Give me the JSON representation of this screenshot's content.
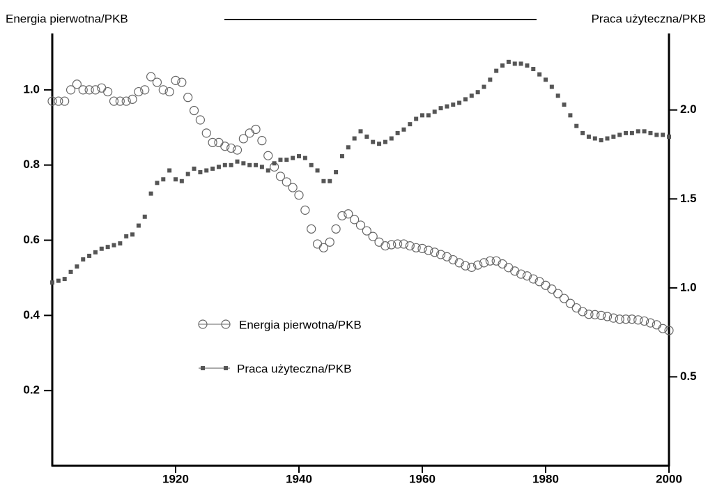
{
  "chart_data": {
    "type": "scatter",
    "ylabel": "Energia pierwotna/PKB",
    "y2label": "Praca użyteczna/PKB",
    "x": [
      1900,
      1901,
      1902,
      1903,
      1904,
      1905,
      1906,
      1907,
      1908,
      1909,
      1910,
      1911,
      1912,
      1913,
      1914,
      1915,
      1916,
      1917,
      1918,
      1919,
      1920,
      1921,
      1922,
      1923,
      1924,
      1925,
      1926,
      1927,
      1928,
      1929,
      1930,
      1931,
      1932,
      1933,
      1934,
      1935,
      1936,
      1937,
      1938,
      1939,
      1940,
      1941,
      1942,
      1943,
      1944,
      1945,
      1946,
      1947,
      1948,
      1949,
      1950,
      1951,
      1952,
      1953,
      1954,
      1955,
      1956,
      1957,
      1958,
      1959,
      1960,
      1961,
      1962,
      1963,
      1964,
      1965,
      1966,
      1967,
      1968,
      1969,
      1970,
      1971,
      1972,
      1973,
      1974,
      1975,
      1976,
      1977,
      1978,
      1979,
      1980,
      1981,
      1982,
      1983,
      1984,
      1985,
      1986,
      1987,
      1988,
      1989,
      1990,
      1991,
      1992,
      1993,
      1994,
      1995,
      1996,
      1997,
      1998,
      1999,
      2000
    ],
    "series": [
      {
        "name": "Energia pierwotna/PKB",
        "color": "#666666",
        "marker": "circle",
        "values": [
          0.97,
          0.97,
          0.97,
          1.0,
          1.015,
          1.0,
          1.0,
          1.0,
          1.005,
          0.995,
          0.97,
          0.97,
          0.97,
          0.975,
          0.995,
          1.0,
          1.035,
          1.02,
          1.0,
          0.995,
          1.025,
          1.02,
          0.98,
          0.945,
          0.92,
          0.885,
          0.86,
          0.86,
          0.85,
          0.845,
          0.84,
          0.87,
          0.885,
          0.895,
          0.865,
          0.825,
          0.795,
          0.77,
          0.755,
          0.74,
          0.72,
          0.68,
          0.63,
          0.59,
          0.58,
          0.595,
          0.63,
          0.665,
          0.67,
          0.655,
          0.64,
          0.625,
          0.61,
          0.595,
          0.585,
          0.588,
          0.59,
          0.59,
          0.585,
          0.58,
          0.578,
          0.573,
          0.568,
          0.562,
          0.556,
          0.548,
          0.54,
          0.532,
          0.528,
          0.534,
          0.54,
          0.545,
          0.545,
          0.537,
          0.527,
          0.518,
          0.51,
          0.505,
          0.497,
          0.49,
          0.48,
          0.47,
          0.458,
          0.445,
          0.432,
          0.42,
          0.41,
          0.403,
          0.402,
          0.4,
          0.397,
          0.393,
          0.39,
          0.39,
          0.39,
          0.388,
          0.385,
          0.38,
          0.375,
          0.365,
          0.36
        ]
      },
      {
        "name": "Praca użyteczna/PKB",
        "color": "#555555",
        "marker": "square",
        "axis": "y2",
        "values": [
          1.03,
          1.04,
          1.05,
          1.09,
          1.12,
          1.16,
          1.18,
          1.2,
          1.22,
          1.23,
          1.24,
          1.25,
          1.29,
          1.3,
          1.35,
          1.4,
          1.53,
          1.59,
          1.61,
          1.66,
          1.61,
          1.6,
          1.64,
          1.67,
          1.65,
          1.66,
          1.67,
          1.68,
          1.69,
          1.69,
          1.71,
          1.7,
          1.69,
          1.69,
          1.68,
          1.66,
          1.7,
          1.72,
          1.72,
          1.73,
          1.74,
          1.73,
          1.69,
          1.66,
          1.6,
          1.6,
          1.65,
          1.74,
          1.79,
          1.84,
          1.88,
          1.85,
          1.82,
          1.81,
          1.82,
          1.84,
          1.87,
          1.89,
          1.92,
          1.95,
          1.97,
          1.97,
          1.99,
          2.01,
          2.02,
          2.03,
          2.04,
          2.06,
          2.08,
          2.1,
          2.13,
          2.17,
          2.22,
          2.25,
          2.27,
          2.26,
          2.26,
          2.25,
          2.23,
          2.2,
          2.17,
          2.13,
          2.08,
          2.03,
          1.97,
          1.91,
          1.87,
          1.85,
          1.84,
          1.83,
          1.84,
          1.85,
          1.86,
          1.87,
          1.87,
          1.88,
          1.88,
          1.87,
          1.86,
          1.86,
          1.85
        ]
      }
    ],
    "xlim": [
      1900,
      2000
    ],
    "xticks": [
      1920,
      1940,
      1960,
      1980,
      2000
    ],
    "ylim": [
      0,
      1.15
    ],
    "yticks": [
      0.2,
      0.4,
      0.6,
      0.8,
      {
        "value": 1,
        "label": "1.0"
      }
    ],
    "y2lim": [
      0,
      2.43
    ],
    "y2ticks": [
      0.5,
      {
        "value": 1,
        "label": "1.0"
      },
      1.5,
      {
        "value": 2,
        "label": "2.0"
      }
    ],
    "legend": "center"
  }
}
